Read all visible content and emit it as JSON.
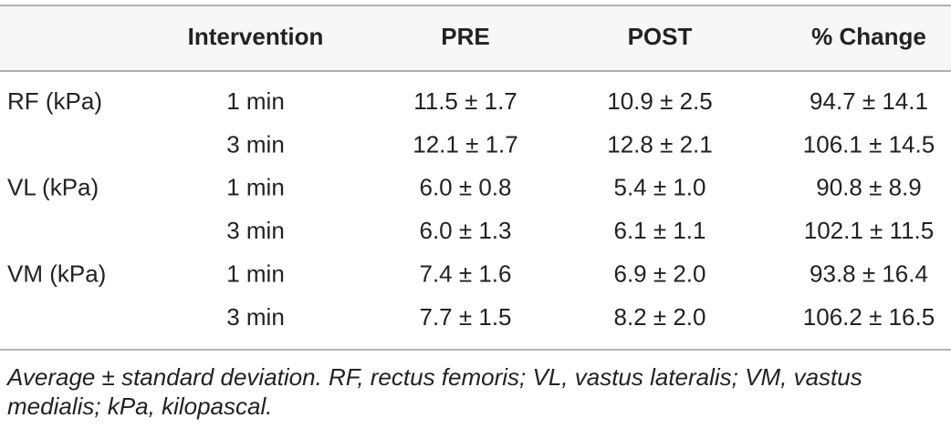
{
  "table": {
    "header": [
      "Intervention",
      "PRE",
      "POST",
      "% Change"
    ],
    "groups": [
      {
        "label": "RF (kPa)",
        "rows": [
          [
            "1 min",
            "11.5 ± 1.7",
            "10.9 ± 2.5",
            "94.7 ± 14.1"
          ],
          [
            "3 min",
            "12.1 ± 1.7",
            "12.8 ± 2.1",
            "106.1 ± 14.5"
          ]
        ]
      },
      {
        "label": "VL (kPa)",
        "rows": [
          [
            "1 min",
            "6.0 ± 0.8",
            "5.4 ± 1.0",
            "90.8 ± 8.9"
          ],
          [
            "3 min",
            "6.0 ± 1.3",
            "6.1 ± 1.1",
            "102.1 ± 11.5"
          ]
        ]
      },
      {
        "label": "VM (kPa)",
        "rows": [
          [
            "1 min",
            "7.4 ± 1.6",
            "6.9 ± 2.0",
            "93.8 ± 16.4"
          ],
          [
            "3 min",
            "7.7 ± 1.5",
            "8.2 ± 2.0",
            "106.2 ± 16.5"
          ]
        ]
      }
    ],
    "footnote": "Average ± standard deviation. RF, rectus femoris; VL, vastus lateralis; VM, vastus medialis; kPa, kilopascal."
  }
}
